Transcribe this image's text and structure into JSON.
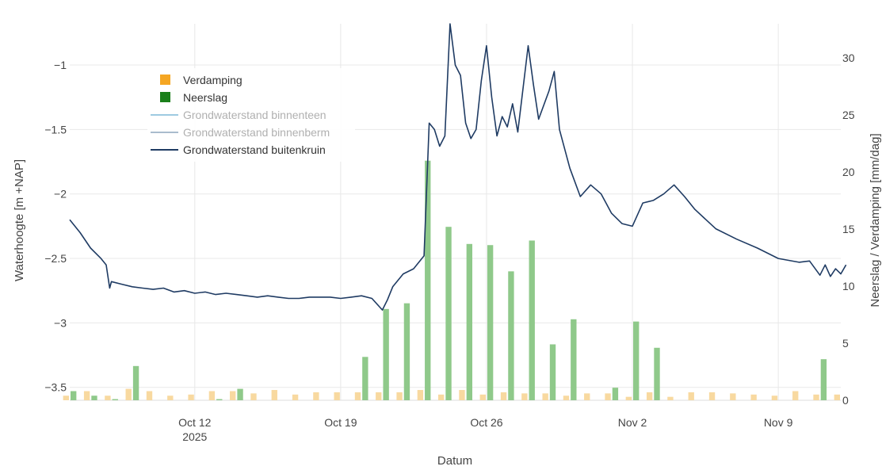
{
  "chart_data": {
    "type": "bar+line",
    "xlabel": "Datum",
    "ylabel_left": "Waterhoogte [m +NAP]",
    "ylabel_right": "Neerslag / Verdamping [mm/dag]",
    "x_range": [
      "2025-10-06",
      "2025-11-12"
    ],
    "y_left_range": [
      -3.6,
      -0.68
    ],
    "y_right_range": [
      0,
      33
    ],
    "x_ticks": [
      {
        "date": "2025-10-12",
        "label": "Oct 12",
        "sublabel": "2025"
      },
      {
        "date": "2025-10-19",
        "label": "Oct 19",
        "sublabel": ""
      },
      {
        "date": "2025-10-26",
        "label": "Oct 26",
        "sublabel": ""
      },
      {
        "date": "2025-11-02",
        "label": "Nov 2",
        "sublabel": ""
      },
      {
        "date": "2025-11-09",
        "label": "Nov 9",
        "sublabel": ""
      }
    ],
    "y_left_ticks": [
      -1,
      -1.5,
      -2,
      -2.5,
      -3,
      -3.5
    ],
    "y_left_tick_labels": [
      "−1",
      "−1.5",
      "−2",
      "−2.5",
      "−3",
      "−3.5"
    ],
    "y_right_ticks": [
      0,
      5,
      10,
      15,
      20,
      25,
      30
    ],
    "legend": [
      {
        "name": "Verdamping",
        "kind": "square",
        "color": "#f5a623",
        "faded": false
      },
      {
        "name": "Neerslag",
        "kind": "square",
        "color": "#1a7f1a",
        "faded": false
      },
      {
        "name": "Grondwaterstand binnenteen",
        "kind": "line",
        "color": "#9ecae1",
        "faded": true
      },
      {
        "name": "Grondwaterstand binnenberm",
        "kind": "line",
        "color": "#a9bccd",
        "faded": true
      },
      {
        "name": "Grondwaterstand buitenkruin",
        "kind": "line",
        "color": "#1f3b63",
        "faded": false
      }
    ],
    "colors": {
      "verdamping": "#f8d9a0",
      "neerslag": "#8fc98a",
      "line": "#1f3b63",
      "grid": "#e8e8e8"
    },
    "series": [
      {
        "name": "Verdamping",
        "kind": "bar",
        "points": [
          [
            "2025-10-06",
            0.4
          ],
          [
            "2025-10-07",
            0.8
          ],
          [
            "2025-10-08",
            0.4
          ],
          [
            "2025-10-09",
            1.0
          ],
          [
            "2025-10-10",
            0.8
          ],
          [
            "2025-10-11",
            0.4
          ],
          [
            "2025-10-12",
            0.5
          ],
          [
            "2025-10-13",
            0.8
          ],
          [
            "2025-10-14",
            0.8
          ],
          [
            "2025-10-15",
            0.6
          ],
          [
            "2025-10-16",
            0.9
          ],
          [
            "2025-10-17",
            0.5
          ],
          [
            "2025-10-18",
            0.7
          ],
          [
            "2025-10-19",
            0.7
          ],
          [
            "2025-10-20",
            0.7
          ],
          [
            "2025-10-21",
            0.7
          ],
          [
            "2025-10-22",
            0.7
          ],
          [
            "2025-10-23",
            0.9
          ],
          [
            "2025-10-24",
            0.5
          ],
          [
            "2025-10-25",
            0.9
          ],
          [
            "2025-10-26",
            0.5
          ],
          [
            "2025-10-27",
            0.7
          ],
          [
            "2025-10-28",
            0.6
          ],
          [
            "2025-10-29",
            0.6
          ],
          [
            "2025-10-30",
            0.4
          ],
          [
            "2025-10-31",
            0.6
          ],
          [
            "2025-11-01",
            0.6
          ],
          [
            "2025-11-02",
            0.3
          ],
          [
            "2025-11-03",
            0.7
          ],
          [
            "2025-11-04",
            0.3
          ],
          [
            "2025-11-05",
            0.7
          ],
          [
            "2025-11-06",
            0.7
          ],
          [
            "2025-11-07",
            0.6
          ],
          [
            "2025-11-08",
            0.5
          ],
          [
            "2025-11-09",
            0.4
          ],
          [
            "2025-11-10",
            0.8
          ],
          [
            "2025-11-11",
            0.5
          ],
          [
            "2025-11-12",
            0.5
          ]
        ]
      },
      {
        "name": "Neerslag",
        "kind": "bar",
        "points": [
          [
            "2025-10-06",
            0.8
          ],
          [
            "2025-10-07",
            0.4
          ],
          [
            "2025-10-08",
            0.1
          ],
          [
            "2025-10-09",
            3.0
          ],
          [
            "2025-10-13",
            0.1
          ],
          [
            "2025-10-14",
            1.0
          ],
          [
            "2025-10-20",
            3.8
          ],
          [
            "2025-10-21",
            8.0
          ],
          [
            "2025-10-22",
            8.5
          ],
          [
            "2025-10-23",
            21.0
          ],
          [
            "2025-10-24",
            15.2
          ],
          [
            "2025-10-25",
            13.7
          ],
          [
            "2025-10-26",
            13.6
          ],
          [
            "2025-10-27",
            11.3
          ],
          [
            "2025-10-28",
            14.0
          ],
          [
            "2025-10-29",
            4.9
          ],
          [
            "2025-10-30",
            7.1
          ],
          [
            "2025-11-01",
            1.1
          ],
          [
            "2025-11-02",
            6.9
          ],
          [
            "2025-11-03",
            4.6
          ],
          [
            "2025-11-11",
            3.6
          ]
        ]
      },
      {
        "name": "Grondwaterstand buitenkruin",
        "kind": "line",
        "points": [
          [
            "2025-10-06 00:00",
            -2.2
          ],
          [
            "2025-10-06 12:00",
            -2.3
          ],
          [
            "2025-10-07 00:00",
            -2.42
          ],
          [
            "2025-10-07 12:00",
            -2.5
          ],
          [
            "2025-10-07 18:00",
            -2.55
          ],
          [
            "2025-10-07 22:00",
            -2.73
          ],
          [
            "2025-10-08 00:00",
            -2.68
          ],
          [
            "2025-10-08 12:00",
            -2.7
          ],
          [
            "2025-10-09 00:00",
            -2.72
          ],
          [
            "2025-10-09 12:00",
            -2.73
          ],
          [
            "2025-10-10 00:00",
            -2.74
          ],
          [
            "2025-10-10 12:00",
            -2.73
          ],
          [
            "2025-10-11 00:00",
            -2.76
          ],
          [
            "2025-10-11 12:00",
            -2.75
          ],
          [
            "2025-10-12 00:00",
            -2.77
          ],
          [
            "2025-10-12 12:00",
            -2.76
          ],
          [
            "2025-10-13 00:00",
            -2.78
          ],
          [
            "2025-10-13 12:00",
            -2.77
          ],
          [
            "2025-10-14 00:00",
            -2.78
          ],
          [
            "2025-10-14 12:00",
            -2.79
          ],
          [
            "2025-10-15 00:00",
            -2.8
          ],
          [
            "2025-10-15 12:00",
            -2.79
          ],
          [
            "2025-10-16 00:00",
            -2.8
          ],
          [
            "2025-10-16 12:00",
            -2.81
          ],
          [
            "2025-10-17 00:00",
            -2.81
          ],
          [
            "2025-10-17 12:00",
            -2.8
          ],
          [
            "2025-10-18 00:00",
            -2.8
          ],
          [
            "2025-10-18 12:00",
            -2.8
          ],
          [
            "2025-10-19 00:00",
            -2.81
          ],
          [
            "2025-10-19 12:00",
            -2.8
          ],
          [
            "2025-10-20 00:00",
            -2.79
          ],
          [
            "2025-10-20 12:00",
            -2.81
          ],
          [
            "2025-10-21 00:00",
            -2.9
          ],
          [
            "2025-10-21 06:00",
            -2.82
          ],
          [
            "2025-10-21 12:00",
            -2.72
          ],
          [
            "2025-10-22 00:00",
            -2.62
          ],
          [
            "2025-10-22 12:00",
            -2.58
          ],
          [
            "2025-10-23 00:00",
            -2.48
          ],
          [
            "2025-10-23 06:00",
            -1.45
          ],
          [
            "2025-10-23 12:00",
            -1.5
          ],
          [
            "2025-10-23 18:00",
            -1.63
          ],
          [
            "2025-10-24 00:00",
            -1.55
          ],
          [
            "2025-10-24 06:00",
            -0.68
          ],
          [
            "2025-10-24 12:00",
            -1.0
          ],
          [
            "2025-10-24 18:00",
            -1.08
          ],
          [
            "2025-10-25 00:00",
            -1.45
          ],
          [
            "2025-10-25 06:00",
            -1.57
          ],
          [
            "2025-10-25 12:00",
            -1.5
          ],
          [
            "2025-10-25 18:00",
            -1.12
          ],
          [
            "2025-10-26 00:00",
            -0.85
          ],
          [
            "2025-10-26 06:00",
            -1.25
          ],
          [
            "2025-10-26 12:00",
            -1.55
          ],
          [
            "2025-10-26 18:00",
            -1.4
          ],
          [
            "2025-10-27 00:00",
            -1.48
          ],
          [
            "2025-10-27 06:00",
            -1.3
          ],
          [
            "2025-10-27 12:00",
            -1.52
          ],
          [
            "2025-10-28 00:00",
            -0.85
          ],
          [
            "2025-10-28 06:00",
            -1.15
          ],
          [
            "2025-10-28 12:00",
            -1.42
          ],
          [
            "2025-10-29 00:00",
            -1.2
          ],
          [
            "2025-10-29 06:00",
            -1.05
          ],
          [
            "2025-10-29 12:00",
            -1.5
          ],
          [
            "2025-10-30 00:00",
            -1.8
          ],
          [
            "2025-10-30 12:00",
            -2.02
          ],
          [
            "2025-10-31 00:00",
            -1.93
          ],
          [
            "2025-10-31 12:00",
            -2.0
          ],
          [
            "2025-11-01 00:00",
            -2.15
          ],
          [
            "2025-11-01 12:00",
            -2.23
          ],
          [
            "2025-11-02 00:00",
            -2.25
          ],
          [
            "2025-11-02 12:00",
            -2.07
          ],
          [
            "2025-11-03 00:00",
            -2.05
          ],
          [
            "2025-11-03 12:00",
            -2.0
          ],
          [
            "2025-11-04 00:00",
            -1.93
          ],
          [
            "2025-11-04 12:00",
            -2.02
          ],
          [
            "2025-11-05 00:00",
            -2.12
          ],
          [
            "2025-11-06 00:00",
            -2.27
          ],
          [
            "2025-11-07 00:00",
            -2.35
          ],
          [
            "2025-11-08 00:00",
            -2.42
          ],
          [
            "2025-11-09 00:00",
            -2.5
          ],
          [
            "2025-11-10 00:00",
            -2.53
          ],
          [
            "2025-11-10 12:00",
            -2.52
          ],
          [
            "2025-11-11 00:00",
            -2.63
          ],
          [
            "2025-11-11 06:00",
            -2.55
          ],
          [
            "2025-11-11 12:00",
            -2.64
          ],
          [
            "2025-11-11 18:00",
            -2.58
          ],
          [
            "2025-11-12 00:00",
            -2.62
          ],
          [
            "2025-11-12 06:00",
            -2.55
          ]
        ]
      }
    ]
  }
}
